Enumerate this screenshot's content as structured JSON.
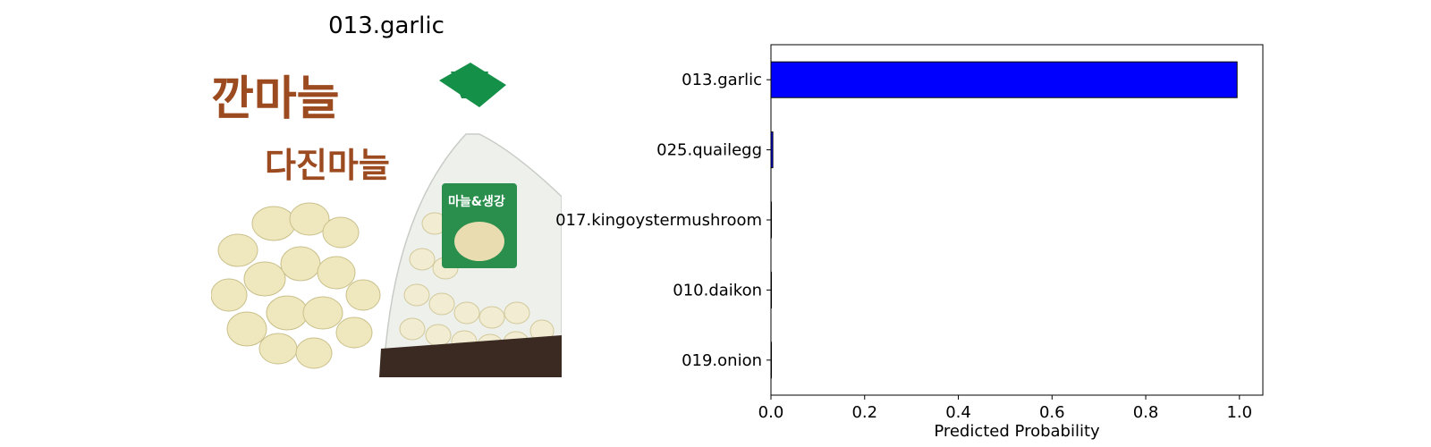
{
  "image_panel": {
    "title": "013.garlic",
    "package_text_top": "깐마늘",
    "package_text_mid": "다진마늘",
    "bag_label_text": "마늘&생강"
  },
  "chart_data": {
    "type": "bar",
    "orientation": "horizontal",
    "categories": [
      "013.garlic",
      "025.quailegg",
      "017.kingoystermushroom",
      "010.daikon",
      "019.onion"
    ],
    "values": [
      0.995,
      0.004,
      0.0005,
      0.0003,
      0.0002
    ],
    "xlabel": "Predicted Probability",
    "ylabel": "",
    "xlim": [
      0,
      1.05
    ],
    "xticks": [
      "0.0",
      "0.2",
      "0.4",
      "0.6",
      "0.8",
      "1.0"
    ],
    "bar_color": "#0000ff",
    "edge_color": "#000000",
    "grid": false
  }
}
